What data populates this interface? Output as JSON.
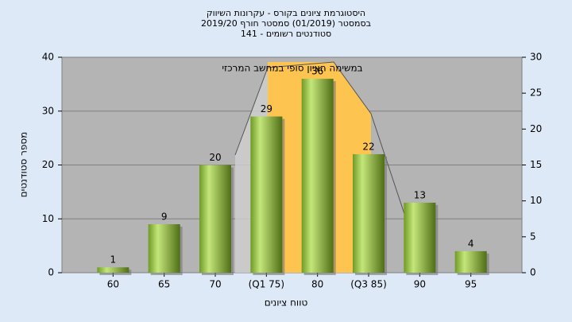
{
  "chart_data": {
    "type": "bar",
    "title": [
      "היסטוגרמת ציונים בקורס - עקרונות השיווק",
      "בסמסטר  (01/2019)  סמסטר חורף 2019/20",
      "סטודנטים רשומים - 141"
    ],
    "annotation": "במשימה הציון סופי במחשב המרכזי",
    "x_label": "טווח ציונים",
    "y_label": "מספר סטודנטים",
    "categories": [
      "60",
      "65",
      "70",
      "(Q1 75)",
      "80",
      "(Q3 85)",
      "90",
      "95"
    ],
    "values": [
      1,
      9,
      20,
      29,
      36,
      22,
      13,
      4
    ],
    "color": "#8fbf35",
    "ylim": [
      0,
      40
    ],
    "yticks": [
      0,
      10,
      20,
      30,
      40
    ],
    "y2lim": [
      0,
      30
    ],
    "y2ticks": [
      0,
      5,
      10,
      15,
      20,
      25,
      30
    ],
    "grid": true
  }
}
